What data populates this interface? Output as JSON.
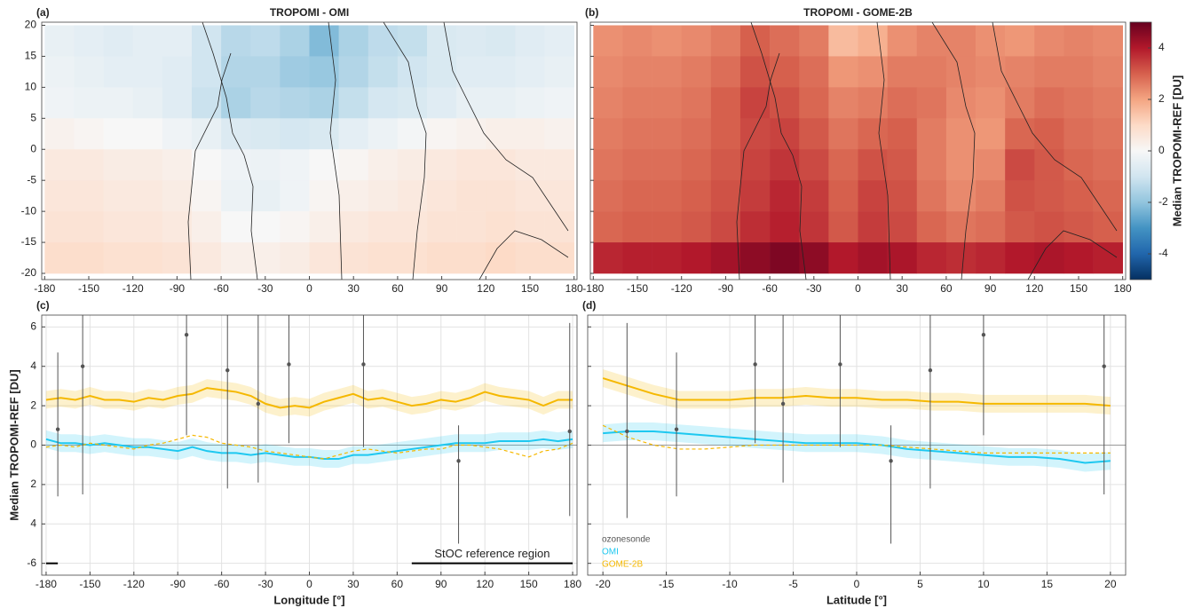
{
  "chart_data": [
    {
      "type": "heatmap",
      "panel": "(a)",
      "title": "TROPOMI - OMI",
      "lon_bins": [
        -180,
        -160,
        -140,
        -120,
        -100,
        -80,
        -60,
        -40,
        -20,
        0,
        20,
        40,
        60,
        80,
        100,
        120,
        140,
        160,
        180
      ],
      "lat_bins": [
        20,
        15,
        10,
        5,
        0,
        -5,
        -10,
        -15,
        -20
      ],
      "values": [
        [
          -0.4,
          -0.5,
          -0.6,
          -0.5,
          -0.5,
          -1.0,
          -1.4,
          -1.3,
          -1.6,
          -2.2,
          -1.6,
          -1.3,
          -1.2,
          -0.8,
          -0.7,
          -0.8,
          -0.6,
          -0.5
        ],
        [
          -0.3,
          -0.4,
          -0.5,
          -0.5,
          -0.6,
          -1.0,
          -1.5,
          -1.5,
          -1.8,
          -1.9,
          -1.5,
          -1.2,
          -1.0,
          -0.8,
          -0.6,
          -0.6,
          -0.5,
          -0.4
        ],
        [
          -0.2,
          -0.3,
          -0.3,
          -0.4,
          -0.6,
          -1.1,
          -1.6,
          -1.4,
          -1.5,
          -1.6,
          -1.2,
          -0.9,
          -0.8,
          -0.6,
          -0.4,
          -0.4,
          -0.3,
          -0.2
        ],
        [
          0.2,
          0.1,
          0.0,
          0.0,
          -0.2,
          -0.4,
          -0.7,
          -0.8,
          -0.9,
          -0.8,
          -0.5,
          -0.3,
          -0.1,
          0.1,
          0.2,
          0.3,
          0.3,
          0.2
        ],
        [
          0.5,
          0.5,
          0.4,
          0.4,
          0.3,
          0.0,
          -0.2,
          -0.3,
          -0.2,
          0.0,
          0.1,
          0.3,
          0.4,
          0.5,
          0.6,
          0.6,
          0.5,
          0.5
        ],
        [
          0.6,
          0.6,
          0.5,
          0.5,
          0.4,
          0.1,
          -0.3,
          -0.4,
          -0.2,
          0.1,
          0.3,
          0.4,
          0.5,
          0.6,
          0.7,
          0.7,
          0.6,
          0.6
        ],
        [
          0.7,
          0.7,
          0.6,
          0.6,
          0.5,
          0.3,
          0.0,
          0.0,
          0.1,
          0.3,
          0.5,
          0.6,
          0.6,
          0.7,
          0.7,
          0.8,
          0.7,
          0.7
        ],
        [
          0.9,
          0.9,
          0.8,
          0.8,
          0.7,
          0.5,
          0.3,
          0.3,
          0.4,
          0.6,
          0.7,
          0.8,
          0.8,
          0.9,
          0.9,
          1.0,
          0.9,
          0.9
        ]
      ],
      "clim": [
        -5,
        5
      ],
      "colormap": [
        "#053061",
        "#2166ac",
        "#4393c3",
        "#92c5de",
        "#d1e5f0",
        "#f7f7f7",
        "#fddbc7",
        "#f4a582",
        "#d6604d",
        "#b2182b",
        "#67001f"
      ],
      "xlim": [
        -182,
        182
      ],
      "xticks": [
        -180,
        -150,
        -120,
        -90,
        -60,
        -30,
        0,
        30,
        60,
        90,
        120,
        150,
        180
      ],
      "ylim": [
        -21,
        20.5
      ],
      "yticks": [
        -20,
        -15,
        -10,
        -5,
        0,
        5,
        10,
        15,
        20
      ]
    },
    {
      "type": "heatmap",
      "panel": "(b)",
      "title": "TROPOMI - GOME-2B",
      "lon_bins": [
        -180,
        -160,
        -140,
        -120,
        -100,
        -80,
        -60,
        -40,
        -20,
        0,
        20,
        40,
        60,
        80,
        100,
        120,
        140,
        160,
        180
      ],
      "lat_bins": [
        20,
        15,
        10,
        5,
        0,
        -5,
        -10,
        -15,
        -20
      ],
      "values": [
        [
          2.3,
          2.4,
          2.3,
          2.4,
          2.6,
          3.0,
          2.8,
          2.6,
          1.6,
          1.8,
          2.3,
          2.5,
          2.5,
          2.3,
          2.2,
          2.4,
          2.5,
          2.4
        ],
        [
          2.4,
          2.5,
          2.5,
          2.6,
          2.8,
          3.2,
          3.0,
          2.8,
          2.2,
          2.3,
          2.6,
          2.6,
          2.5,
          2.4,
          2.5,
          2.6,
          2.6,
          2.5
        ],
        [
          2.5,
          2.6,
          2.6,
          2.7,
          3.0,
          3.4,
          3.2,
          2.9,
          2.5,
          2.6,
          2.8,
          2.7,
          2.4,
          2.3,
          2.6,
          2.8,
          2.7,
          2.6
        ],
        [
          2.6,
          2.7,
          2.7,
          2.8,
          3.0,
          3.3,
          3.4,
          3.1,
          2.7,
          2.9,
          3.0,
          2.6,
          2.3,
          2.2,
          2.9,
          3.0,
          2.8,
          2.7
        ],
        [
          2.7,
          2.8,
          2.8,
          2.9,
          3.1,
          3.4,
          3.6,
          3.3,
          2.9,
          3.2,
          3.1,
          2.6,
          2.3,
          2.4,
          3.3,
          3.1,
          2.9,
          2.8
        ],
        [
          2.8,
          2.9,
          2.9,
          3.0,
          3.2,
          3.5,
          3.8,
          3.5,
          3.0,
          3.4,
          3.2,
          2.7,
          2.4,
          2.6,
          3.2,
          3.1,
          3.0,
          2.9
        ],
        [
          2.9,
          3.0,
          3.0,
          3.1,
          3.3,
          3.7,
          3.9,
          3.6,
          3.1,
          3.5,
          3.3,
          2.9,
          2.7,
          2.8,
          3.1,
          3.2,
          3.1,
          3.0
        ],
        [
          3.8,
          3.9,
          3.9,
          4.0,
          4.2,
          4.5,
          4.7,
          4.5,
          4.0,
          4.2,
          4.1,
          3.8,
          3.7,
          3.8,
          4.0,
          4.1,
          4.0,
          3.9
        ]
      ],
      "clim": [
        -5,
        5
      ],
      "colormap": [
        "#053061",
        "#2166ac",
        "#4393c3",
        "#92c5de",
        "#d1e5f0",
        "#f7f7f7",
        "#fddbc7",
        "#f4a582",
        "#d6604d",
        "#b2182b",
        "#67001f"
      ],
      "colorbar": {
        "label": "Median TROPOMI-REF [DU]",
        "ticks": [
          -4,
          -2,
          0,
          2,
          4
        ]
      },
      "xlim": [
        -182,
        182
      ],
      "xticks": [
        -180,
        -150,
        -120,
        -90,
        -60,
        -30,
        0,
        30,
        60,
        90,
        120,
        150,
        180
      ],
      "ylim": [
        -21,
        20.5
      ],
      "yticks": [
        -20,
        -15,
        -10,
        -5,
        0,
        5,
        10,
        15,
        20
      ]
    },
    {
      "type": "line",
      "panel": "(c)",
      "x_label": "Longitude [°]",
      "y_label": "Median TROPOMI-REF [DU]",
      "x": [
        -180,
        -170,
        -160,
        -150,
        -140,
        -130,
        -120,
        -110,
        -100,
        -90,
        -80,
        -70,
        -60,
        -50,
        -40,
        -30,
        -20,
        -10,
        0,
        10,
        20,
        30,
        40,
        50,
        60,
        70,
        80,
        90,
        100,
        110,
        120,
        130,
        140,
        150,
        160,
        170,
        180
      ],
      "series": [
        {
          "color": "#1ec8f0",
          "band": 0.45,
          "values": [
            0.3,
            0.1,
            0.1,
            0.0,
            0.1,
            0.0,
            -0.1,
            -0.1,
            -0.2,
            -0.3,
            -0.1,
            -0.3,
            -0.4,
            -0.4,
            -0.5,
            -0.4,
            -0.5,
            -0.6,
            -0.6,
            -0.7,
            -0.7,
            -0.5,
            -0.5,
            -0.4,
            -0.3,
            -0.2,
            -0.1,
            0.0,
            0.1,
            0.1,
            0.1,
            0.2,
            0.2,
            0.2,
            0.3,
            0.2,
            0.3
          ]
        },
        {
          "color": "#f5b800",
          "band": 0.45,
          "values": [
            2.3,
            2.4,
            2.3,
            2.5,
            2.3,
            2.3,
            2.2,
            2.4,
            2.3,
            2.5,
            2.6,
            2.9,
            2.8,
            2.7,
            2.5,
            2.1,
            1.9,
            2.0,
            1.9,
            2.2,
            2.4,
            2.6,
            2.3,
            2.4,
            2.2,
            2.0,
            2.1,
            2.3,
            2.2,
            2.4,
            2.7,
            2.5,
            2.4,
            2.3,
            2.0,
            2.3,
            2.3
          ]
        },
        {
          "color": "#f5b800",
          "dash": true,
          "values": [
            -0.1,
            0.0,
            -0.1,
            0.1,
            0.0,
            -0.1,
            -0.2,
            0.0,
            0.1,
            0.3,
            0.5,
            0.4,
            0.1,
            0.0,
            -0.1,
            -0.3,
            -0.4,
            -0.5,
            -0.6,
            -0.7,
            -0.5,
            -0.3,
            -0.2,
            -0.3,
            -0.4,
            -0.3,
            -0.2,
            -0.2,
            0.0,
            0.0,
            -0.1,
            -0.2,
            -0.4,
            -0.6,
            -0.3,
            -0.2,
            0.1
          ]
        }
      ],
      "sonde": {
        "color": "#555555",
        "x": [
          -172,
          -155,
          -84,
          -56,
          -35,
          -14,
          37,
          102,
          178
        ],
        "values": [
          0.8,
          4.0,
          5.6,
          3.8,
          2.1,
          4.1,
          4.1,
          -0.8,
          0.7
        ],
        "low": [
          -2.6,
          -2.5,
          0.5,
          -2.2,
          -1.9,
          0.1,
          -0.1,
          -5.0,
          -3.6
        ],
        "high": [
          4.7,
          8.5,
          8.0,
          8.0,
          8.0,
          8.0,
          8.0,
          1.0,
          6.2
        ]
      },
      "annotation": "StOC reference region",
      "reference_ranges": [
        [
          70,
          180
        ],
        [
          -180,
          -172
        ]
      ],
      "reference_y": -6,
      "xlim": [
        -183,
        183
      ],
      "xticks": [
        -180,
        -150,
        -120,
        -90,
        -60,
        -30,
        0,
        30,
        60,
        90,
        120,
        150,
        180
      ],
      "ylim": [
        -6.6,
        6.6
      ],
      "yticks": [
        -6,
        {
          "value": -4,
          "label": "4"
        },
        {
          "value": -2,
          "label": "2"
        },
        0,
        2,
        4,
        6
      ],
      "grid": true
    },
    {
      "type": "line",
      "panel": "(d)",
      "x_label": "Latitude [°]",
      "x": [
        -20,
        -18,
        -16,
        -14,
        -12,
        -10,
        -8,
        -6,
        -4,
        -2,
        0,
        2,
        4,
        6,
        8,
        10,
        12,
        14,
        16,
        18,
        20
      ],
      "series": [
        {
          "name": "OMI",
          "color": "#1ec8f0",
          "band": 0.45,
          "values": [
            0.6,
            0.7,
            0.7,
            0.6,
            0.5,
            0.4,
            0.3,
            0.2,
            0.1,
            0.1,
            0.1,
            0.0,
            -0.2,
            -0.3,
            -0.4,
            -0.5,
            -0.6,
            -0.6,
            -0.7,
            -0.9,
            -0.8
          ]
        },
        {
          "name": "GOME-2B",
          "color": "#f5b800",
          "band": 0.45,
          "values": [
            3.4,
            3.0,
            2.6,
            2.3,
            2.3,
            2.3,
            2.4,
            2.4,
            2.5,
            2.4,
            2.4,
            2.3,
            2.3,
            2.2,
            2.2,
            2.1,
            2.1,
            2.1,
            2.1,
            2.1,
            2.0
          ]
        },
        {
          "color": "#f5b800",
          "dash": true,
          "values": [
            1.0,
            0.4,
            0.0,
            -0.2,
            -0.2,
            -0.1,
            0.0,
            0.0,
            0.0,
            0.0,
            0.0,
            0.0,
            -0.1,
            -0.2,
            -0.3,
            -0.4,
            -0.4,
            -0.4,
            -0.4,
            -0.4,
            -0.4
          ]
        }
      ],
      "sonde": {
        "name": "ozonesonde",
        "color": "#555555",
        "x": [
          -18.1,
          -14.2,
          -8,
          -5.8,
          -1.3,
          2.7,
          5.8,
          10,
          19.5
        ],
        "values": [
          0.7,
          0.8,
          4.1,
          2.1,
          4.1,
          -0.8,
          3.8,
          5.6,
          4.0
        ],
        "low": [
          -3.7,
          -2.6,
          0.1,
          -1.9,
          -0.1,
          -5.0,
          -2.2,
          0.5,
          -2.5
        ],
        "high": [
          6.2,
          4.7,
          8,
          8,
          8,
          1.0,
          8,
          8,
          8
        ]
      },
      "legend": "lower left",
      "xlim": [
        -21.2,
        21.2
      ],
      "xticks": [
        -20,
        -15,
        -10,
        -5,
        0,
        5,
        10,
        15,
        20
      ],
      "ylim": [
        -6.6,
        6.6
      ],
      "yticks": [
        -6,
        -4,
        -2,
        0,
        2,
        4,
        6
      ],
      "grid": true
    }
  ]
}
